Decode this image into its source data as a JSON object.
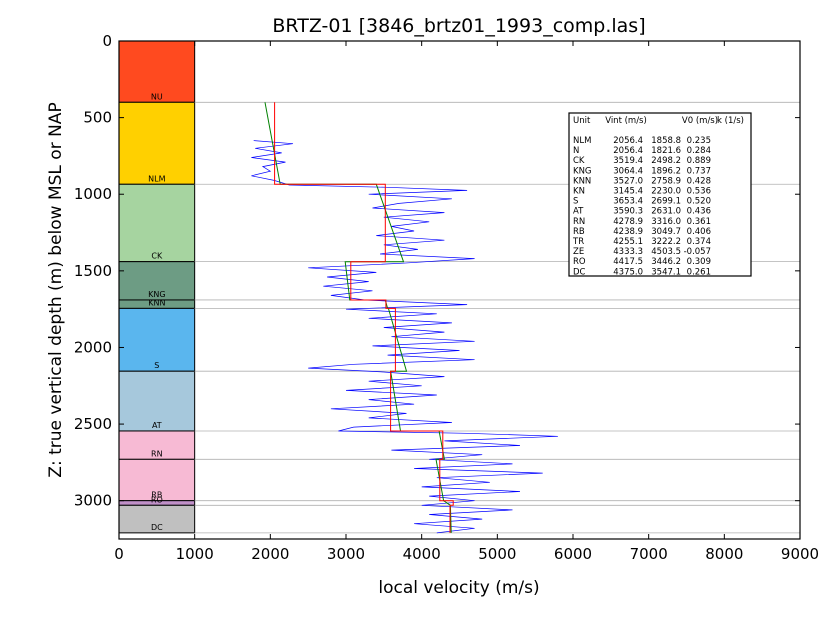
{
  "chart_data": {
    "type": "line",
    "title": "BRTZ-01 [3846_brtz01_1993_comp.las]",
    "xlabel": "local velocity (m/s)",
    "ylabel": "Z: true vertical depth (m) below MSL or NAP",
    "xlim": [
      0,
      9000
    ],
    "ylim": [
      3250,
      0
    ],
    "x_ticks": [
      "0",
      "1000",
      "2000",
      "3000",
      "4000",
      "5000",
      "6000",
      "7000",
      "8000",
      "9000"
    ],
    "y_ticks": [
      "0",
      "500",
      "1000",
      "1500",
      "2000",
      "2500",
      "3000"
    ],
    "formation_column": {
      "x_range": [
        0,
        1000
      ],
      "units": [
        {
          "name": "NU",
          "top": 0,
          "base": 400,
          "color": "#ff4a1f"
        },
        {
          "name": "NLM",
          "top": 400,
          "base": 935,
          "color": "#ffd000"
        },
        {
          "name": "CK",
          "top": 935,
          "base": 1440,
          "color": "#a6d4a0"
        },
        {
          "name": "KNG",
          "top": 1440,
          "base": 1690,
          "color": "#6d9c84"
        },
        {
          "name": "KNN",
          "top": 1690,
          "base": 1745,
          "color": "#6d9c84"
        },
        {
          "name": "S",
          "top": 1745,
          "base": 2155,
          "color": "#5ab6ee"
        },
        {
          "name": "AT",
          "top": 2155,
          "base": 2545,
          "color": "#a6c8dc"
        },
        {
          "name": "RN",
          "top": 2545,
          "base": 2730,
          "color": "#f7bad4"
        },
        {
          "name": "RB",
          "top": 2730,
          "base": 3000,
          "color": "#f7bad4"
        },
        {
          "name": "RO",
          "top": 3000,
          "base": 3030,
          "color": "#c090c8"
        },
        {
          "name": "DC",
          "top": 3030,
          "base": 3210,
          "color": "#c0c0c0"
        }
      ]
    },
    "series": [
      {
        "color": "#0000ff",
        "points": [
          [
            1780,
            650
          ],
          [
            2300,
            670
          ],
          [
            1800,
            700
          ],
          [
            2150,
            730
          ],
          [
            1750,
            760
          ],
          [
            2200,
            790
          ],
          [
            1900,
            820
          ],
          [
            2000,
            850
          ],
          [
            1750,
            880
          ],
          [
            2050,
            910
          ],
          [
            2250,
            940
          ],
          [
            3550,
            955
          ],
          [
            4600,
            975
          ],
          [
            3300,
            1000
          ],
          [
            4400,
            1030
          ],
          [
            3700,
            1060
          ],
          [
            3350,
            1090
          ],
          [
            4300,
            1120
          ],
          [
            3500,
            1150
          ],
          [
            4100,
            1180
          ],
          [
            3600,
            1210
          ],
          [
            3900,
            1240
          ],
          [
            3400,
            1270
          ],
          [
            4300,
            1300
          ],
          [
            3500,
            1330
          ],
          [
            3950,
            1360
          ],
          [
            3450,
            1390
          ],
          [
            4700,
            1420
          ],
          [
            3750,
            1450
          ],
          [
            2500,
            1480
          ],
          [
            3400,
            1510
          ],
          [
            2750,
            1540
          ],
          [
            3300,
            1570
          ],
          [
            2700,
            1600
          ],
          [
            3350,
            1630
          ],
          [
            2800,
            1660
          ],
          [
            3250,
            1690
          ],
          [
            4600,
            1720
          ],
          [
            3000,
            1750
          ],
          [
            4200,
            1780
          ],
          [
            3300,
            1810
          ],
          [
            4400,
            1840
          ],
          [
            3500,
            1870
          ],
          [
            4300,
            1900
          ],
          [
            3600,
            1930
          ],
          [
            4700,
            1960
          ],
          [
            3350,
            1990
          ],
          [
            4500,
            2020
          ],
          [
            3550,
            2050
          ],
          [
            4700,
            2080
          ],
          [
            3100,
            2110
          ],
          [
            2500,
            2135
          ],
          [
            3500,
            2160
          ],
          [
            4300,
            2190
          ],
          [
            3300,
            2220
          ],
          [
            4000,
            2250
          ],
          [
            3000,
            2280
          ],
          [
            4200,
            2310
          ],
          [
            3300,
            2340
          ],
          [
            3900,
            2370
          ],
          [
            2800,
            2400
          ],
          [
            3800,
            2430
          ],
          [
            3300,
            2460
          ],
          [
            4400,
            2490
          ],
          [
            3100,
            2520
          ],
          [
            2900,
            2545
          ],
          [
            4600,
            2560
          ],
          [
            5800,
            2580
          ],
          [
            4300,
            2610
          ],
          [
            5300,
            2640
          ],
          [
            3600,
            2670
          ],
          [
            4800,
            2700
          ],
          [
            4100,
            2730
          ],
          [
            5200,
            2760
          ],
          [
            3900,
            2790
          ],
          [
            5600,
            2820
          ],
          [
            4200,
            2850
          ],
          [
            4900,
            2880
          ],
          [
            4000,
            2910
          ],
          [
            5300,
            2940
          ],
          [
            4100,
            2970
          ],
          [
            4700,
            3000
          ],
          [
            4000,
            3030
          ],
          [
            5200,
            3060
          ],
          [
            4100,
            3090
          ],
          [
            4800,
            3120
          ],
          [
            3900,
            3150
          ],
          [
            4700,
            3180
          ],
          [
            4200,
            3210
          ]
        ]
      },
      {
        "color": "#008000",
        "points": [
          [
            1930,
            400
          ],
          [
            2130,
            935
          ],
          [
            3400,
            935
          ],
          [
            3760,
            1440
          ],
          [
            2990,
            1440
          ],
          [
            3050,
            1690
          ],
          [
            3520,
            1690
          ],
          [
            3550,
            1745
          ],
          [
            3560,
            1745
          ],
          [
            3800,
            2155
          ],
          [
            3590,
            2155
          ],
          [
            3720,
            2545
          ],
          [
            4230,
            2545
          ],
          [
            4300,
            2730
          ],
          [
            4190,
            2730
          ],
          [
            4290,
            3000
          ],
          [
            4380,
            3030
          ],
          [
            4390,
            3210
          ]
        ]
      },
      {
        "color": "#ff0000",
        "points": [
          [
            2056,
            400
          ],
          [
            2056,
            935
          ],
          [
            3519,
            935
          ],
          [
            3519,
            1440
          ],
          [
            3064,
            1440
          ],
          [
            3064,
            1690
          ],
          [
            3527,
            1690
          ],
          [
            3527,
            1745
          ],
          [
            3653,
            1745
          ],
          [
            3653,
            2155
          ],
          [
            3590,
            2155
          ],
          [
            3590,
            2545
          ],
          [
            4279,
            2545
          ],
          [
            4279,
            2730
          ],
          [
            4239,
            2730
          ],
          [
            4239,
            3000
          ],
          [
            4417,
            3000
          ],
          [
            4417,
            3030
          ],
          [
            4375,
            3030
          ],
          [
            4375,
            3210
          ]
        ]
      }
    ],
    "table": {
      "header": [
        "Unit",
        "Vint (m/s)",
        "V0 (m/s)",
        "k (1/s)"
      ],
      "rows": [
        [
          "NLM",
          "2056.4",
          "1858.8",
          "0.235"
        ],
        [
          "N",
          "2056.4",
          "1821.6",
          "0.284"
        ],
        [
          "CK",
          "3519.4",
          "2498.2",
          "0.889"
        ],
        [
          "KNG",
          "3064.4",
          "1896.2",
          "0.737"
        ],
        [
          "KNN",
          "3527.0",
          "2758.9",
          "0.428"
        ],
        [
          "KN",
          "3145.4",
          "2230.0",
          "0.536"
        ],
        [
          "S",
          "3653.4",
          "2699.1",
          "0.520"
        ],
        [
          "AT",
          "3590.3",
          "2631.0",
          "0.436"
        ],
        [
          "RN",
          "4278.9",
          "3316.0",
          "0.361"
        ],
        [
          "RB",
          "4238.9",
          "3049.7",
          "0.406"
        ],
        [
          "TR",
          "4255.1",
          "3222.2",
          "0.374"
        ],
        [
          "ZE",
          "4333.3",
          "4503.5",
          "-0.057"
        ],
        [
          "RO",
          "4417.5",
          "3446.2",
          "0.309"
        ],
        [
          "DC",
          "4375.0",
          "3547.1",
          "0.261"
        ]
      ]
    }
  }
}
